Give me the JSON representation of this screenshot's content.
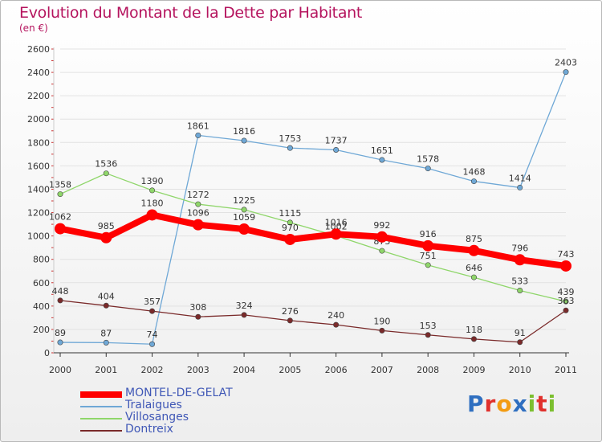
{
  "title": "Evolution du Montant de la Dette par Habitant",
  "subtitle": "(en €)",
  "logo_text": "Proxiti",
  "logo_colors": [
    "#2f6fc0",
    "#e0302c",
    "#f39c12",
    "#2f6fc0",
    "#7cbf2f",
    "#e0302c",
    "#7cbf2f"
  ],
  "chart_data": {
    "type": "line",
    "x": [
      "2000",
      "2001",
      "2002",
      "2003",
      "2004",
      "2005",
      "2006",
      "2007",
      "2008",
      "2009",
      "2010",
      "2011"
    ],
    "ylim": [
      0,
      2600
    ],
    "yticks": [
      0,
      200,
      400,
      600,
      800,
      1000,
      1200,
      1400,
      1600,
      1800,
      2000,
      2200,
      2400,
      2600
    ],
    "legend_position": "bottom-left",
    "series": [
      {
        "name": "MONTEL-DE-GELAT",
        "color": "#ff0000",
        "values": [
          1062,
          985,
          1180,
          1096,
          1059,
          970,
          1016,
          992,
          916,
          875,
          796,
          743
        ]
      },
      {
        "name": "Tralaigues",
        "color": "#6fa8d6",
        "values": [
          89,
          87,
          74,
          1861,
          1816,
          1753,
          1737,
          1651,
          1578,
          1468,
          1414,
          2403
        ]
      },
      {
        "name": "Villosanges",
        "color": "#8fd66a",
        "values": [
          1358,
          1536,
          1390,
          1272,
          1225,
          1115,
          1002,
          873,
          751,
          646,
          533,
          439
        ]
      },
      {
        "name": "Dontreix",
        "color": "#7a2a2a",
        "values": [
          448,
          404,
          357,
          308,
          324,
          276,
          240,
          190,
          153,
          118,
          91,
          363
        ]
      }
    ]
  }
}
